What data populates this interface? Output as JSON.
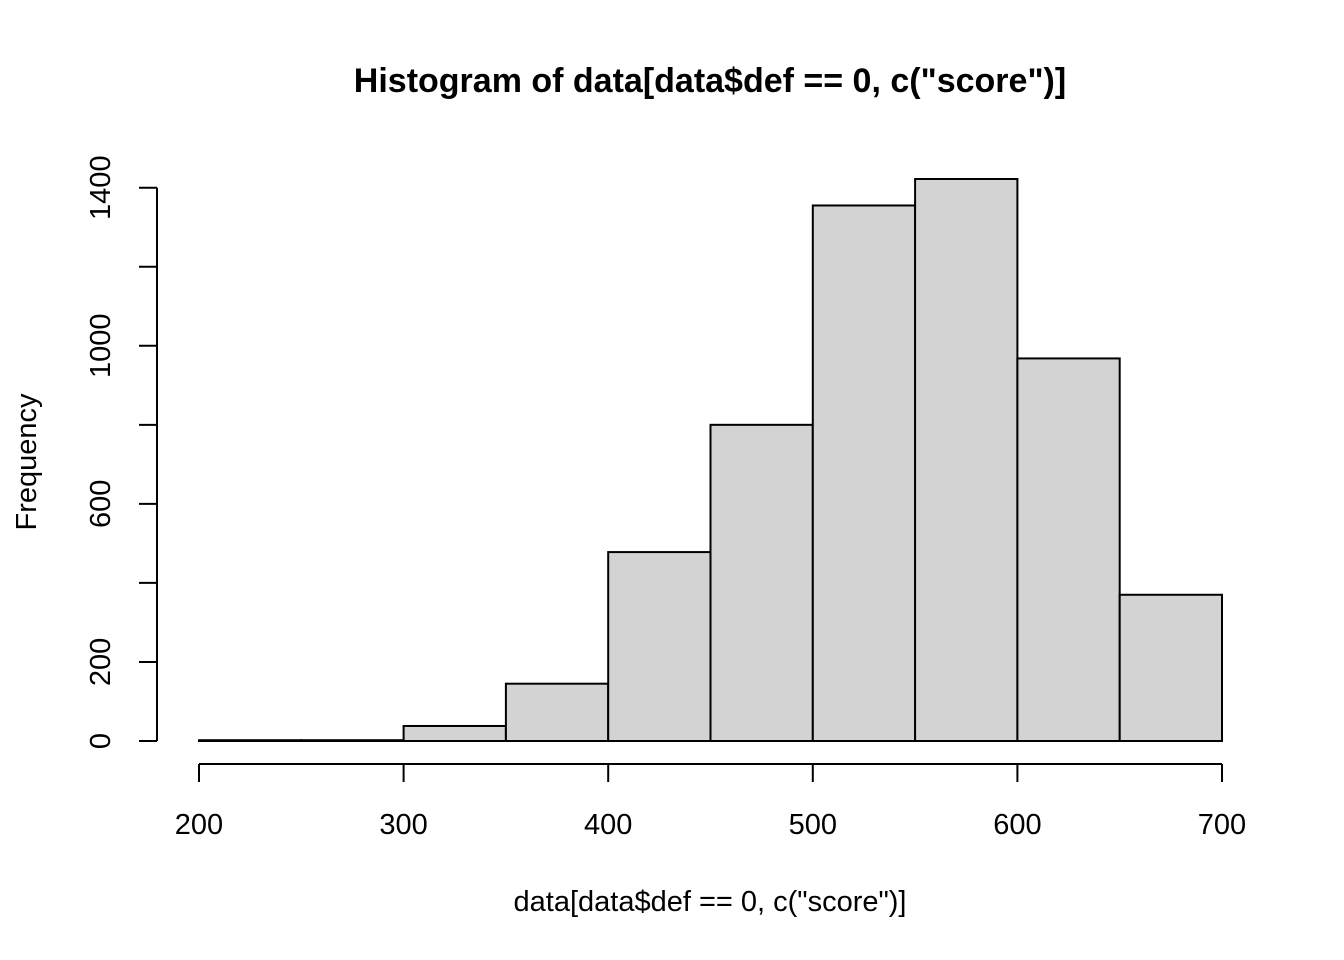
{
  "chart_data": {
    "type": "bar",
    "title": "Histogram of data[data$def == 0, c(\"score\")]",
    "xlabel": "data[data$def == 0, c(\"score\")]",
    "ylabel": "Frequency",
    "bin_edges": [
      200,
      250,
      300,
      350,
      400,
      450,
      500,
      550,
      600,
      650,
      700
    ],
    "values": [
      2,
      2,
      38,
      145,
      478,
      800,
      1355,
      1422,
      968,
      370
    ],
    "xlim": [
      200,
      700
    ],
    "ylim": [
      0,
      1422
    ],
    "x_ticks": [
      200,
      300,
      400,
      500,
      600,
      700
    ],
    "x_tick_labels": [
      "200",
      "300",
      "400",
      "500",
      "600",
      "700"
    ],
    "y_ticks": [
      0,
      200,
      400,
      600,
      800,
      1000,
      1200,
      1400
    ],
    "y_tick_labels": [
      "0",
      "200",
      "",
      "600",
      "",
      "1000",
      "",
      "1400"
    ],
    "grid": false,
    "colors": {
      "bar_fill": "#d3d3d3",
      "bar_stroke": "#000000"
    }
  }
}
